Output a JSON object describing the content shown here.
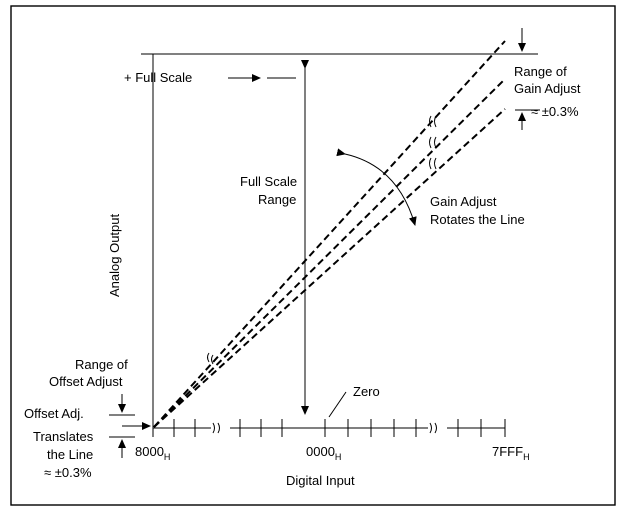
{
  "labels": {
    "full_scale_plus": "+ Full Scale",
    "range_of_gain": "Range of",
    "gain_adjust": "Gain Adjust",
    "gain_approx": "≈ ±0.3%",
    "full_scale_range_1": "Full Scale",
    "full_scale_range_2": "Range",
    "gain_rotates_1": "Gain Adjust",
    "gain_rotates_2": "Rotates the Line",
    "analog_output": "Analog Output",
    "range_of_offset_1": "Range of",
    "range_of_offset_2": "Offset Adjust",
    "offset_adj": "Offset Adj.",
    "translates": "Translates",
    "the_line": "the Line",
    "offset_approx": "≈ ±0.3%",
    "zero": "Zero",
    "digital_input": "Digital Input"
  },
  "tick_labels": {
    "left_main": "8000",
    "left_sub": "H",
    "mid_main": "0000",
    "mid_sub": "H",
    "right_main": "7FFF",
    "right_sub": "H"
  },
  "colors": {
    "stroke": "#000000",
    "background": "#ffffff"
  }
}
